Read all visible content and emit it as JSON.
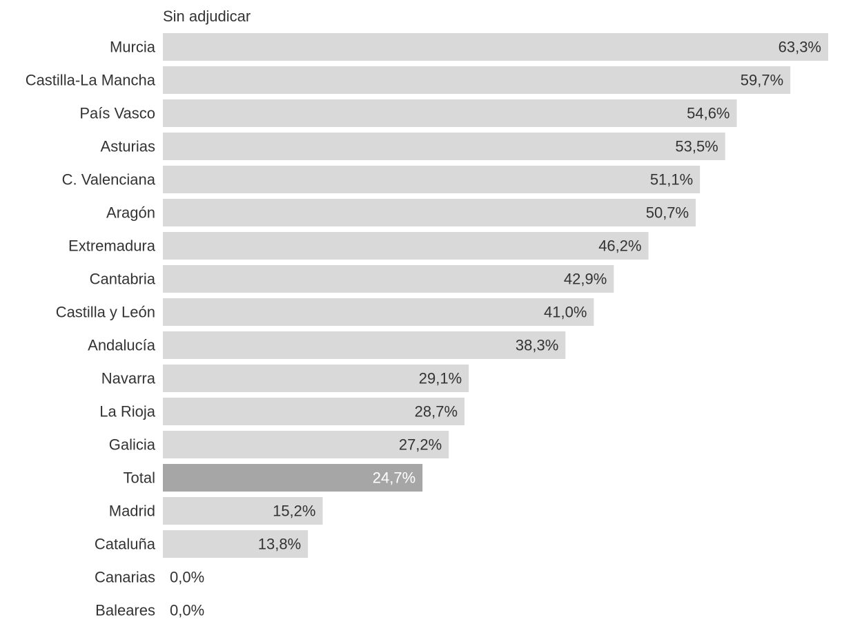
{
  "chart_data": {
    "type": "bar",
    "orientation": "horizontal",
    "title": "",
    "series_label": "Sin adjudicar",
    "xlabel": "",
    "ylabel": "",
    "xlim": [
      0,
      63.3
    ],
    "grid": false,
    "legend": "none",
    "colors": {
      "bar": "#d9d9d9",
      "highlight_bar": "#a6a6a6",
      "label_dark": "#333333",
      "label_light": "#ffffff"
    },
    "categories": [
      "Murcia",
      "Castilla-La Mancha",
      "País Vasco",
      "Asturias",
      "C. Valenciana",
      "Aragón",
      "Extremadura",
      "Cantabria",
      "Castilla y León",
      "Andalucía",
      "Navarra",
      "La Rioja",
      "Galicia",
      "Total",
      "Madrid",
      "Cataluña",
      "Canarias",
      "Baleares"
    ],
    "values": [
      63.3,
      59.7,
      54.6,
      53.5,
      51.1,
      50.7,
      46.2,
      42.9,
      41.0,
      38.3,
      29.1,
      28.7,
      27.2,
      24.7,
      15.2,
      13.8,
      0.0,
      0.0
    ],
    "value_labels": [
      "63,3%",
      "59,7%",
      "54,6%",
      "53,5%",
      "51,1%",
      "50,7%",
      "46,2%",
      "42,9%",
      "41,0%",
      "38,3%",
      "29,1%",
      "28,7%",
      "27,2%",
      "24,7%",
      "15,2%",
      "13,8%",
      "0,0%",
      "0,0%"
    ],
    "highlight": [
      "Total"
    ]
  }
}
